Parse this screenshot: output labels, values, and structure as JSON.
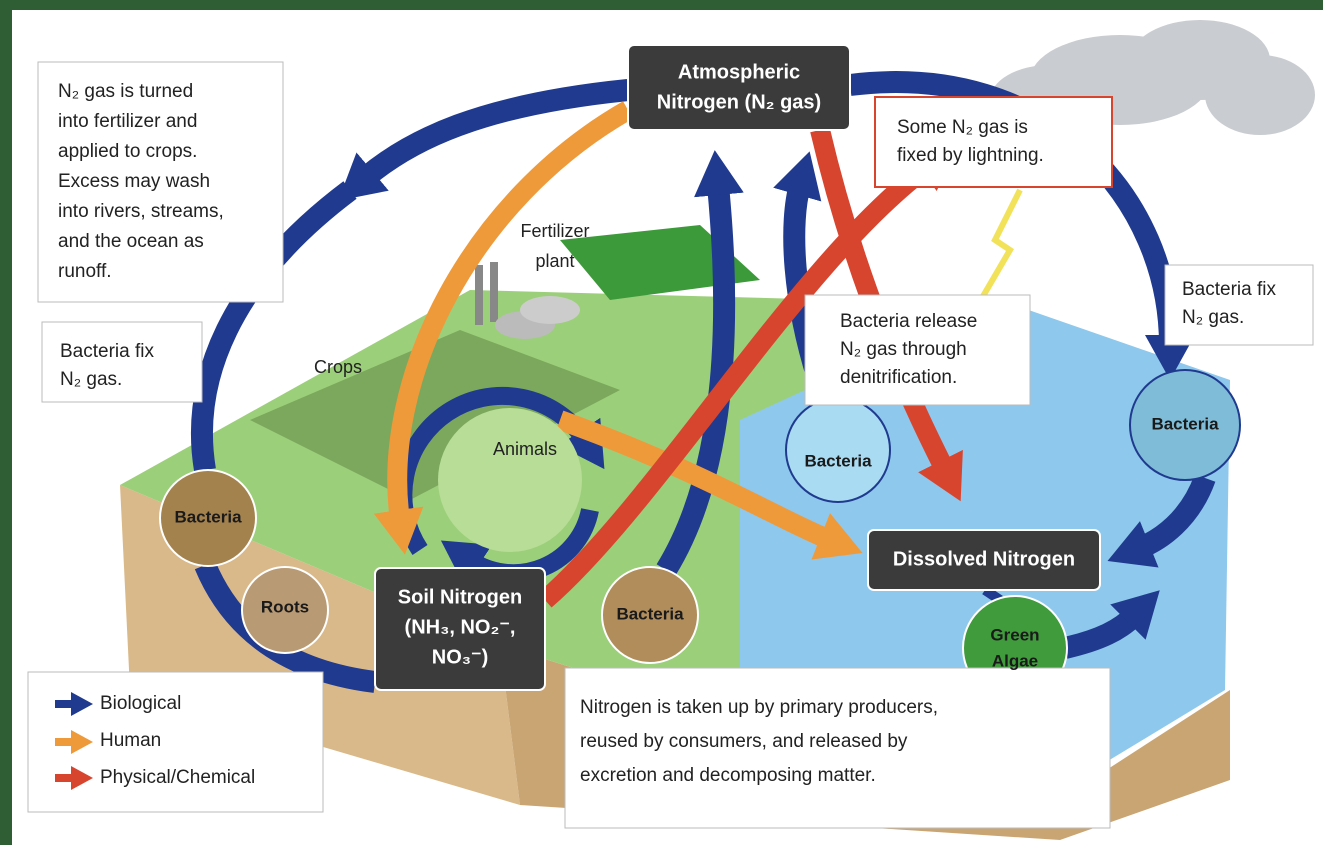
{
  "nodes": {
    "atmosphere": [
      "Atmospheric",
      "Nitrogen (N₂ gas)"
    ],
    "soil": [
      "Soil Nitrogen",
      "(NH₃, NO₂⁻,",
      "NO₃⁻)"
    ],
    "dissolved": "Dissolved Nitrogen",
    "bacteria": [
      "Bacteria",
      "Bacteria",
      "Bacteria",
      "Bacteria"
    ],
    "roots": "Roots",
    "algae": [
      "Green",
      "Algae"
    ],
    "animals": "Animals",
    "crops": "Crops",
    "plant": [
      "Fertilizer",
      "plant"
    ]
  },
  "callouts": {
    "fertilizer": [
      "N₂ gas is turned",
      "into fertilizer and",
      "applied to crops.",
      "Excess may wash",
      "into rivers, streams,",
      "and the ocean as",
      "runoff."
    ],
    "lightning": [
      "Some N₂ gas is",
      "fixed by lightning."
    ],
    "fix_left": [
      "Bacteria fix",
      "N₂ gas."
    ],
    "release": [
      "Bacteria release",
      "N₂ gas through",
      "denitrification."
    ],
    "fix_right": [
      "Bacteria fix",
      "N₂ gas."
    ],
    "uptake": [
      "Nitrogen is taken up by primary producers,",
      "reused by consumers, and released by",
      "excretion and decomposing matter."
    ]
  },
  "legend": [
    "Biological",
    "Human",
    "Physical/Chemical"
  ]
}
